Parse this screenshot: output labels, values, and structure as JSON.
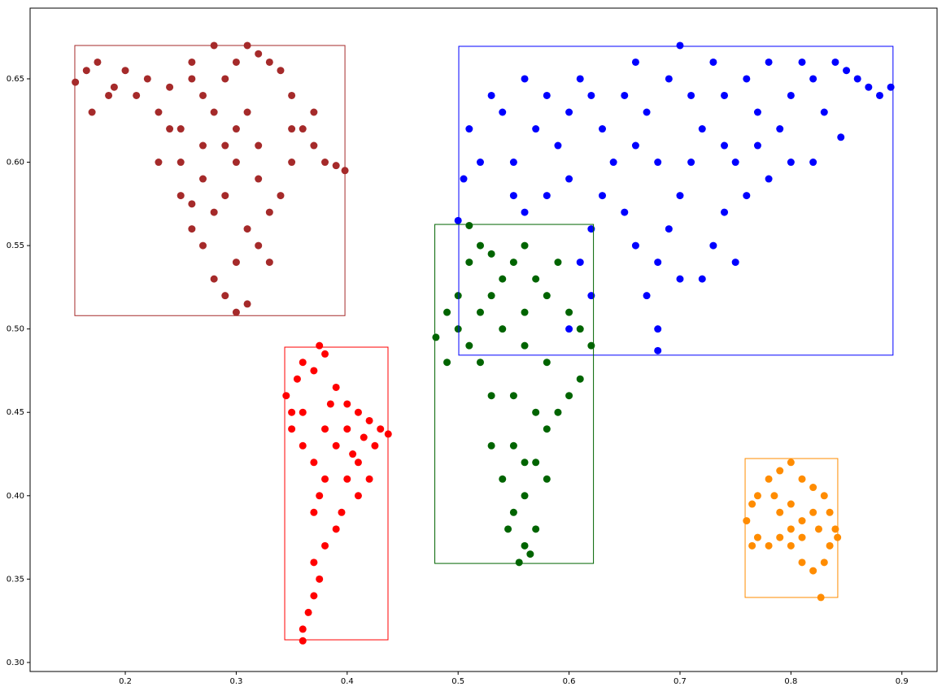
{
  "chart_data": {
    "type": "scatter",
    "xlim": [
      0.1142,
      0.9317
    ],
    "ylim": [
      0.2946,
      0.6924
    ],
    "xticks": [
      0.2,
      0.3,
      0.4,
      0.5,
      0.6,
      0.7,
      0.8,
      0.9
    ],
    "yticks": [
      {
        "value": 0.3,
        "label": "0.30"
      },
      0.35,
      {
        "value": 0.4,
        "label": "0.40"
      },
      0.45,
      {
        "value": 0.5,
        "label": "0.50"
      },
      0.55,
      {
        "value": 0.6,
        "label": "0.60"
      },
      0.65
    ],
    "grid": false,
    "series": [
      {
        "color": "#a52a2a",
        "x": [
          0.155,
          0.165,
          0.175,
          0.185,
          0.17,
          0.19,
          0.2,
          0.21,
          0.22,
          0.23,
          0.24,
          0.25,
          0.26,
          0.27,
          0.28,
          0.29,
          0.3,
          0.31,
          0.32,
          0.33,
          0.34,
          0.35,
          0.36,
          0.37,
          0.38,
          0.39,
          0.398,
          0.35,
          0.34,
          0.33,
          0.32,
          0.3,
          0.29,
          0.28,
          0.27,
          0.26,
          0.25,
          0.26,
          0.27,
          0.28,
          0.29,
          0.3,
          0.31,
          0.3,
          0.31,
          0.32,
          0.27,
          0.25,
          0.24,
          0.23,
          0.3,
          0.31,
          0.29,
          0.32,
          0.35,
          0.37,
          0.28,
          0.26,
          0.33
        ],
        "y": [
          0.648,
          0.655,
          0.66,
          0.64,
          0.63,
          0.645,
          0.655,
          0.64,
          0.65,
          0.63,
          0.645,
          0.62,
          0.66,
          0.64,
          0.63,
          0.65,
          0.66,
          0.67,
          0.665,
          0.66,
          0.655,
          0.64,
          0.62,
          0.61,
          0.6,
          0.598,
          0.595,
          0.6,
          0.58,
          0.57,
          0.59,
          0.6,
          0.58,
          0.57,
          0.59,
          0.575,
          0.58,
          0.56,
          0.55,
          0.53,
          0.52,
          0.51,
          0.515,
          0.54,
          0.56,
          0.55,
          0.61,
          0.6,
          0.62,
          0.6,
          0.62,
          0.63,
          0.61,
          0.61,
          0.62,
          0.63,
          0.67,
          0.65,
          0.54
        ],
        "box": {
          "x": [
            0.1545,
            0.398
          ],
          "y": [
            0.508,
            0.67
          ]
        }
      },
      {
        "color": "#0000ff",
        "x": [
          0.5,
          0.505,
          0.51,
          0.52,
          0.53,
          0.54,
          0.55,
          0.56,
          0.57,
          0.58,
          0.59,
          0.6,
          0.61,
          0.62,
          0.63,
          0.64,
          0.65,
          0.66,
          0.67,
          0.68,
          0.69,
          0.7,
          0.71,
          0.72,
          0.73,
          0.74,
          0.75,
          0.76,
          0.77,
          0.78,
          0.79,
          0.8,
          0.81,
          0.82,
          0.83,
          0.84,
          0.85,
          0.86,
          0.87,
          0.88,
          0.89,
          0.845,
          0.8,
          0.78,
          0.76,
          0.74,
          0.73,
          0.72,
          0.75,
          0.7,
          0.69,
          0.68,
          0.67,
          0.68,
          0.68,
          0.66,
          0.65,
          0.63,
          0.62,
          0.61,
          0.62,
          0.6,
          0.58,
          0.56,
          0.55,
          0.7,
          0.71,
          0.77,
          0.82,
          0.74,
          0.66,
          0.6
        ],
        "y": [
          0.565,
          0.59,
          0.62,
          0.6,
          0.64,
          0.63,
          0.6,
          0.65,
          0.62,
          0.64,
          0.61,
          0.63,
          0.65,
          0.64,
          0.62,
          0.6,
          0.64,
          0.66,
          0.63,
          0.6,
          0.65,
          0.67,
          0.64,
          0.62,
          0.66,
          0.64,
          0.6,
          0.65,
          0.63,
          0.66,
          0.62,
          0.64,
          0.66,
          0.65,
          0.63,
          0.66,
          0.655,
          0.65,
          0.645,
          0.64,
          0.645,
          0.615,
          0.6,
          0.59,
          0.58,
          0.57,
          0.55,
          0.53,
          0.54,
          0.58,
          0.56,
          0.54,
          0.52,
          0.5,
          0.487,
          0.55,
          0.57,
          0.58,
          0.56,
          0.54,
          0.52,
          0.59,
          0.58,
          0.57,
          0.58,
          0.53,
          0.6,
          0.61,
          0.6,
          0.61,
          0.61,
          0.5
        ],
        "box": {
          "x": [
            0.5006,
            0.892
          ],
          "y": [
            0.4843,
            0.6695
          ]
        }
      },
      {
        "color": "#006400",
        "x": [
          0.48,
          0.49,
          0.5,
          0.51,
          0.52,
          0.53,
          0.54,
          0.55,
          0.56,
          0.57,
          0.58,
          0.59,
          0.6,
          0.61,
          0.62,
          0.61,
          0.6,
          0.59,
          0.58,
          0.57,
          0.56,
          0.55,
          0.56,
          0.565,
          0.555,
          0.545,
          0.54,
          0.53,
          0.53,
          0.52,
          0.51,
          0.49,
          0.5,
          0.52,
          0.54,
          0.56,
          0.58,
          0.55,
          0.57,
          0.55,
          0.58,
          0.56,
          0.57,
          0.53,
          0.56,
          0.51
        ],
        "y": [
          0.495,
          0.51,
          0.52,
          0.54,
          0.55,
          0.545,
          0.53,
          0.54,
          0.55,
          0.53,
          0.52,
          0.54,
          0.51,
          0.5,
          0.49,
          0.47,
          0.46,
          0.45,
          0.44,
          0.42,
          0.4,
          0.39,
          0.37,
          0.365,
          0.36,
          0.38,
          0.41,
          0.43,
          0.46,
          0.48,
          0.49,
          0.48,
          0.5,
          0.51,
          0.5,
          0.49,
          0.48,
          0.46,
          0.45,
          0.43,
          0.41,
          0.42,
          0.38,
          0.52,
          0.51,
          0.562
        ],
        "box": {
          "x": [
            0.479,
            0.622
          ],
          "y": [
            0.3594,
            0.5627
          ]
        }
      },
      {
        "color": "#ff0000",
        "x": [
          0.345,
          0.35,
          0.355,
          0.36,
          0.37,
          0.375,
          0.38,
          0.39,
          0.4,
          0.41,
          0.42,
          0.43,
          0.437,
          0.425,
          0.41,
          0.4,
          0.395,
          0.39,
          0.38,
          0.37,
          0.375,
          0.37,
          0.365,
          0.36,
          0.36,
          0.35,
          0.36,
          0.37,
          0.38,
          0.375,
          0.37,
          0.38,
          0.39,
          0.4,
          0.42,
          0.41,
          0.36,
          0.385,
          0.415,
          0.405
        ],
        "y": [
          0.46,
          0.45,
          0.47,
          0.48,
          0.475,
          0.49,
          0.485,
          0.465,
          0.455,
          0.45,
          0.445,
          0.44,
          0.437,
          0.43,
          0.42,
          0.41,
          0.39,
          0.38,
          0.37,
          0.36,
          0.35,
          0.34,
          0.33,
          0.32,
          0.313,
          0.44,
          0.43,
          0.42,
          0.41,
          0.4,
          0.39,
          0.44,
          0.43,
          0.44,
          0.41,
          0.4,
          0.45,
          0.455,
          0.435,
          0.425
        ],
        "box": {
          "x": [
            0.3437,
            0.4368
          ],
          "y": [
            0.3136,
            0.4891
          ]
        }
      },
      {
        "color": "#ff8c00",
        "x": [
          0.76,
          0.765,
          0.77,
          0.78,
          0.79,
          0.8,
          0.81,
          0.82,
          0.83,
          0.835,
          0.84,
          0.842,
          0.835,
          0.83,
          0.82,
          0.81,
          0.8,
          0.79,
          0.78,
          0.77,
          0.765,
          0.79,
          0.8,
          0.81,
          0.82,
          0.825,
          0.8,
          0.785,
          0.827,
          0.81
        ],
        "y": [
          0.385,
          0.395,
          0.4,
          0.41,
          0.415,
          0.42,
          0.41,
          0.405,
          0.4,
          0.39,
          0.38,
          0.375,
          0.37,
          0.36,
          0.355,
          0.36,
          0.37,
          0.375,
          0.37,
          0.375,
          0.37,
          0.39,
          0.395,
          0.385,
          0.39,
          0.38,
          0.38,
          0.4,
          0.339,
          0.375
        ],
        "box": {
          "x": [
            0.7587,
            0.8422
          ],
          "y": [
            0.339,
            0.4223
          ]
        }
      }
    ]
  }
}
